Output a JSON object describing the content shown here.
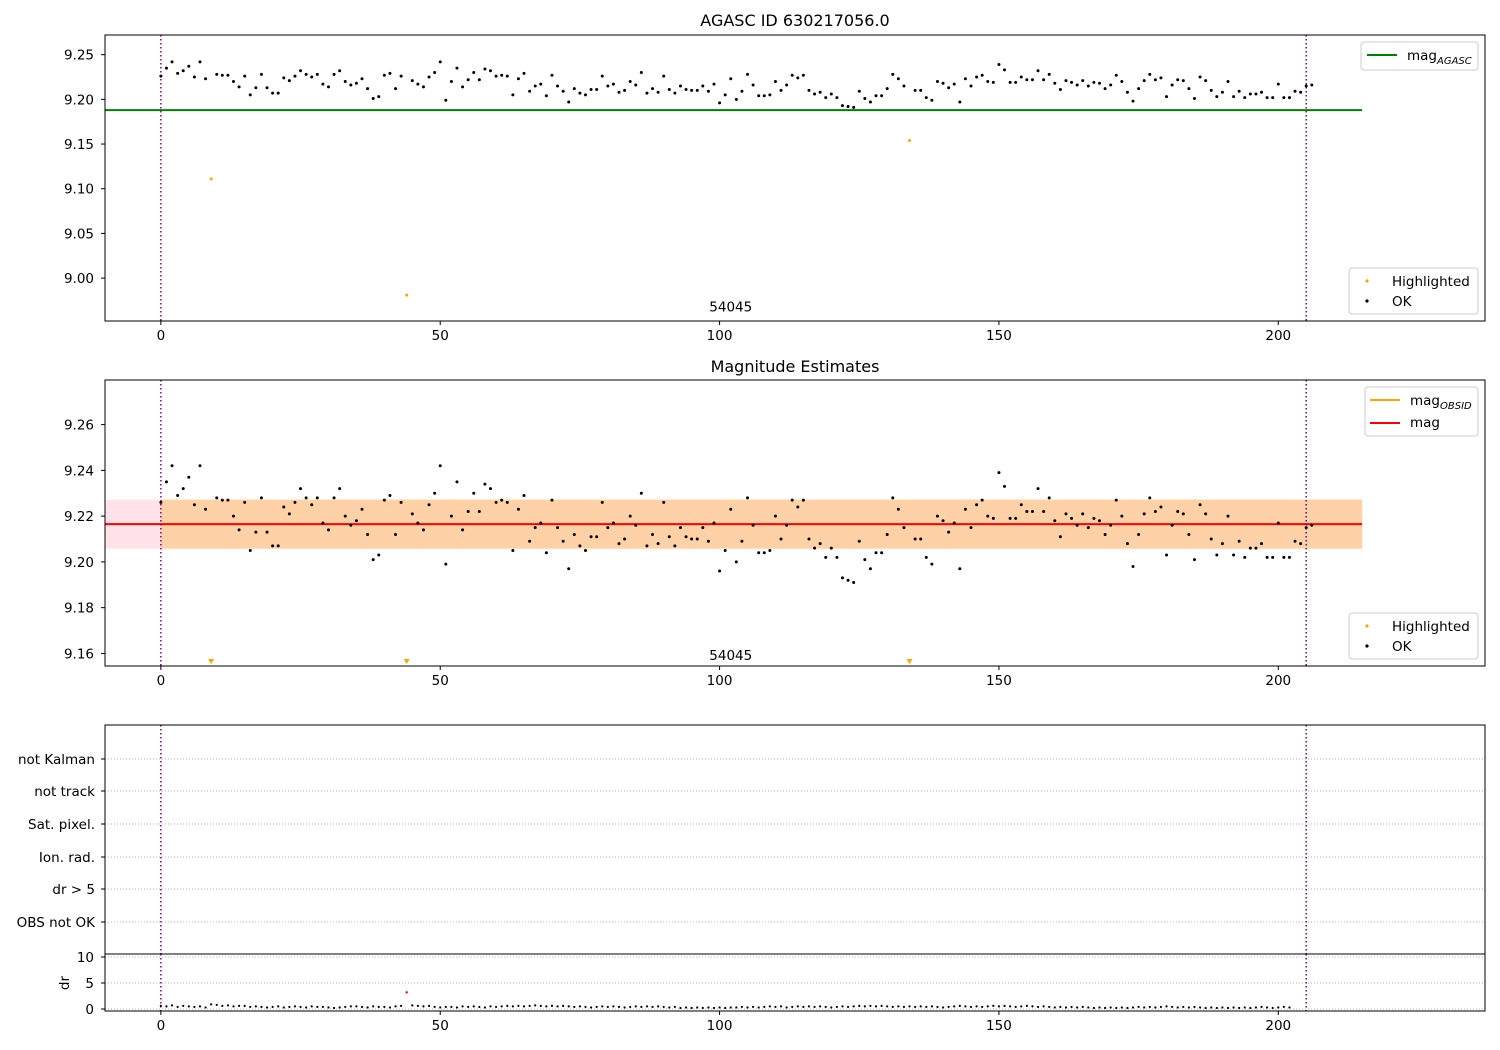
{
  "chart_data": [
    {
      "id": "mag_agasc_panel",
      "type": "scatter",
      "title": "AGASC ID 630217056.0",
      "xlim": [
        -10,
        237
      ],
      "ylim": [
        8.952,
        9.272
      ],
      "xticks": [
        0,
        50,
        100,
        150,
        200
      ],
      "yticks": [
        9.0,
        9.05,
        9.1,
        9.15,
        9.2,
        9.25
      ],
      "ytick_labels": [
        "9.00",
        "9.05",
        "9.10",
        "9.15",
        "9.20",
        "9.25"
      ],
      "vlines": [
        0,
        205
      ],
      "annotation": {
        "text": "54045",
        "x": 102,
        "y": 8.965
      },
      "hline": {
        "name": "mag_AGASC",
        "y": 9.188,
        "x_range": [
          -10,
          215
        ],
        "color": "#008000"
      },
      "legend_top": [
        {
          "label_main": "mag",
          "label_sub": "AGASC",
          "color": "#008000"
        }
      ],
      "legend_bottom": [
        {
          "label": "Highlighted",
          "color": "#ffa500"
        },
        {
          "label": "OK",
          "color": "#000000"
        }
      ],
      "series": [
        {
          "name": "Highlighted",
          "color": "#ffa500",
          "points": [
            [
              9,
              9.111
            ],
            [
              44,
              8.981
            ],
            [
              134,
              9.154
            ]
          ]
        },
        {
          "name": "OK",
          "color": "#000000",
          "values_start_x": 0,
          "skip_x": [
            9,
            44,
            134
          ],
          "values": [
            9.226,
            9.235,
            9.242,
            9.229,
            9.232,
            9.237,
            9.225,
            9.242,
            9.223,
            9.228,
            9.227,
            9.227,
            9.22,
            9.214,
            9.226,
            9.205,
            9.213,
            9.228,
            9.213,
            9.207,
            9.207,
            9.224,
            9.221,
            9.226,
            9.232,
            9.228,
            9.225,
            9.228,
            9.217,
            9.214,
            9.228,
            9.232,
            9.22,
            9.216,
            9.218,
            9.223,
            9.212,
            9.201,
            9.203,
            9.227,
            9.229,
            9.212,
            9.226,
            9.221,
            9.217,
            9.214,
            9.225,
            9.23,
            9.242,
            9.199,
            9.22,
            9.235,
            9.214,
            9.222,
            9.23,
            9.222,
            9.234,
            9.232,
            9.226,
            9.227,
            9.226,
            9.205,
            9.223,
            9.229,
            9.209,
            9.215,
            9.217,
            9.204,
            9.227,
            9.215,
            9.209,
            9.197,
            9.212,
            9.207,
            9.205,
            9.211,
            9.211,
            9.226,
            9.215,
            9.217,
            9.208,
            9.21,
            9.22,
            9.216,
            9.23,
            9.207,
            9.212,
            9.208,
            9.226,
            9.211,
            9.207,
            9.215,
            9.211,
            9.21,
            9.21,
            9.215,
            9.209,
            9.217,
            9.196,
            9.205,
            9.223,
            9.2,
            9.209,
            9.228,
            9.216,
            9.204,
            9.204,
            9.205,
            9.22,
            9.21,
            9.216,
            9.227,
            9.224,
            9.227,
            9.21,
            9.206,
            9.208,
            9.202,
            9.206,
            9.202,
            9.193,
            9.192,
            9.191,
            9.209,
            9.201,
            9.197,
            9.204,
            9.204,
            9.212,
            9.228,
            9.223,
            9.215,
            9.21,
            9.21,
            9.202,
            9.199,
            9.22,
            9.218,
            9.213,
            9.217,
            9.197,
            9.223,
            9.215,
            9.225,
            9.227,
            9.22,
            9.219,
            9.239,
            9.233,
            9.219,
            9.219,
            9.225,
            9.222,
            9.222,
            9.232,
            9.222,
            9.228,
            9.218,
            9.211,
            9.221,
            9.219,
            9.216,
            9.221,
            9.215,
            9.219,
            9.218,
            9.212,
            9.216,
            9.227,
            9.22,
            9.208,
            9.198,
            9.212,
            9.221,
            9.228,
            9.222,
            9.224,
            9.203,
            9.216,
            9.222,
            9.221,
            9.212,
            9.201,
            9.225,
            9.221,
            9.21,
            9.203,
            9.208,
            9.22,
            9.203,
            9.209,
            9.202,
            9.206,
            9.206,
            9.208,
            9.202,
            9.202,
            9.217,
            9.202,
            9.202,
            9.209,
            9.208,
            9.215,
            9.216
          ]
        }
      ]
    },
    {
      "id": "magnitude_estimates_panel",
      "type": "scatter",
      "title": "Magnitude Estimates",
      "xlim": [
        -10,
        237
      ],
      "ylim": [
        9.1545,
        9.2795
      ],
      "xticks": [
        0,
        50,
        100,
        150,
        200
      ],
      "yticks": [
        9.16,
        9.18,
        9.2,
        9.22,
        9.24,
        9.26
      ],
      "ytick_labels": [
        "9.16",
        "9.18",
        "9.20",
        "9.22",
        "9.24",
        "9.26"
      ],
      "vlines": [
        0,
        205
      ],
      "annotation": {
        "text": "54045",
        "x": 102,
        "y": 9.158
      },
      "hline": {
        "name": "mag",
        "y": 9.2165,
        "x_range": [
          -10,
          215
        ],
        "color": "#ff0000"
      },
      "band_outer": {
        "y_range": [
          9.2058,
          9.2272
        ],
        "x_range": [
          -10,
          215
        ],
        "color": "#ffc0cb"
      },
      "band_inner": {
        "y_range": [
          9.2058,
          9.2272
        ],
        "x_range": [
          0,
          215
        ],
        "color": "#ffa500"
      },
      "legend_top": [
        {
          "label_main": "mag",
          "label_sub": "OBSID",
          "color": "#ffa500"
        },
        {
          "label_main": "mag",
          "label_sub": "",
          "color": "#ff0000"
        }
      ],
      "legend_bottom": [
        {
          "label": "Highlighted",
          "color": "#ffa500"
        },
        {
          "label": "OK",
          "color": "#000000"
        }
      ],
      "offscale_markers": {
        "x": [
          9,
          44,
          134
        ],
        "color": "#ffa500"
      }
    },
    {
      "id": "flags_panel",
      "type": "scatter",
      "xlim": [
        -10,
        237
      ],
      "vlines": [
        0,
        205
      ],
      "flag_labels": [
        "not Kalman",
        "not track",
        "Sat. pixel.",
        "Ion. rad.",
        "dr > 5",
        "OBS not OK"
      ]
    },
    {
      "id": "dr_panel",
      "type": "scatter",
      "xlim": [
        -10,
        237
      ],
      "ylim": [
        -0.5,
        10.5
      ],
      "ylabel": "dr",
      "xticks": [
        0,
        50,
        100,
        150,
        200
      ],
      "yticks": [
        0,
        5,
        10
      ],
      "ytick_labels": [
        "0",
        "5",
        "10"
      ],
      "vlines": [
        0,
        205
      ],
      "highlighted_point": {
        "x": 44,
        "y": 3.2,
        "color": "#ff0000"
      },
      "dr_values": [
        0.6,
        0.5,
        0.7,
        0.4,
        0.6,
        0.5,
        0.4,
        0.5,
        0.3,
        0.9,
        0.8,
        0.6,
        0.7,
        0.5,
        0.6,
        0.6,
        0.4,
        0.5,
        0.4,
        0.3,
        0.4,
        0.5,
        0.3,
        0.4,
        0.5,
        0.4,
        0.3,
        0.5,
        0.4,
        0.4,
        0.3,
        0.2,
        0.3,
        0.4,
        0.5,
        0.5,
        0.4,
        0.3,
        0.5,
        0.4,
        0.4,
        0.3,
        0.5,
        0.6,
        3.2,
        0.7,
        0.6,
        0.5,
        0.6,
        0.4,
        0.3,
        0.4,
        0.4,
        0.3,
        0.5,
        0.4,
        0.5,
        0.4,
        0.3,
        0.5,
        0.4,
        0.5,
        0.6,
        0.5,
        0.6,
        0.5,
        0.6,
        0.7,
        0.6,
        0.5,
        0.6,
        0.5,
        0.6,
        0.5,
        0.4,
        0.5,
        0.4,
        0.3,
        0.4,
        0.5,
        0.4,
        0.5,
        0.4,
        0.3,
        0.4,
        0.5,
        0.4,
        0.5,
        0.4,
        0.5,
        0.4,
        0.3,
        0.4,
        0.2,
        0.3,
        0.2,
        0.3,
        0.2,
        0.3,
        0.2,
        0.3,
        0.2,
        0.3,
        0.3,
        0.4,
        0.3,
        0.4,
        0.3,
        0.4,
        0.5,
        0.4,
        0.5,
        0.3,
        0.4,
        0.5,
        0.4,
        0.5,
        0.4,
        0.5,
        0.4,
        0.3,
        0.4,
        0.5,
        0.4,
        0.5,
        0.6,
        0.5,
        0.6,
        0.5,
        0.6,
        0.5,
        0.4,
        0.5,
        0.4,
        0.5,
        0.4,
        0.5,
        0.4,
        0.5,
        0.4,
        0.3,
        0.4,
        0.5,
        0.6,
        0.5,
        0.4,
        0.5,
        0.4,
        0.5,
        0.6,
        0.5,
        0.6,
        0.5,
        0.4,
        0.5,
        0.6,
        0.5,
        0.4,
        0.5,
        0.4,
        0.3,
        0.4,
        0.3,
        0.4,
        0.3,
        0.4,
        0.3,
        0.2,
        0.3,
        0.2,
        0.3,
        0.2,
        0.3,
        0.2,
        0.3,
        0.4,
        0.3,
        0.4,
        0.3,
        0.4,
        0.5,
        0.4,
        0.3,
        0.4,
        0.3,
        0.4,
        0.3,
        0.2,
        0.3,
        0.2,
        0.3,
        0.2,
        0.3,
        0.2,
        0.3,
        0.2,
        0.3,
        0.4,
        0.3,
        0.2,
        0.3,
        0.4,
        0.3
      ]
    }
  ]
}
